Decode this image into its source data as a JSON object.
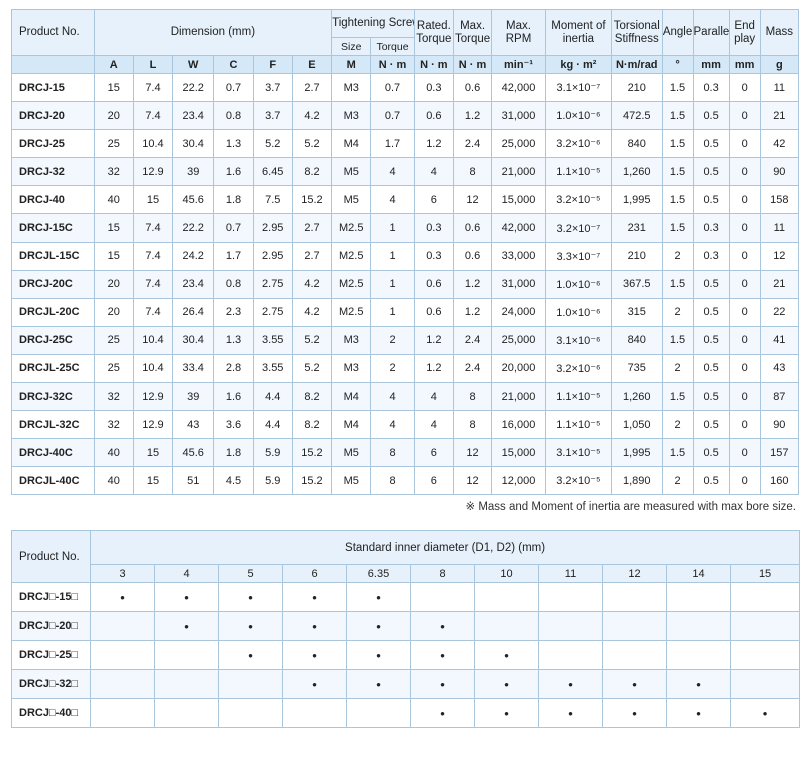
{
  "spec_table": {
    "headers": {
      "product_no": "Product No.",
      "dimension": "Dimension (mm)",
      "tightening_screw": "Tightening Screw",
      "size": "Size",
      "torque": "Torque",
      "rated_torque": "Rated. Torque",
      "max_torque": "Max. Torque",
      "max_rpm": "Max. RPM",
      "moment_of_inertia": "Moment of inertia",
      "torsional_stiffness": "Torsional Stiffness",
      "angle": "Angle",
      "parallel": "Parallel",
      "end_play": "End play",
      "mass": "Mass"
    },
    "letters": [
      "A",
      "L",
      "W",
      "C",
      "F",
      "E"
    ],
    "units": [
      "M",
      "N · m",
      "N · m",
      "N · m",
      "min⁻¹",
      "kg · m²",
      "N·m/rad",
      "°",
      "mm",
      "mm",
      "g"
    ],
    "rows": [
      [
        "DRCJ-15",
        "15",
        "7.4",
        "22.2",
        "0.7",
        "3.7",
        "2.7",
        "M3",
        "0.7",
        "0.3",
        "0.6",
        "42,000",
        "3.1×10⁻⁷",
        "210",
        "1.5",
        "0.3",
        "0",
        "11"
      ],
      [
        "DRCJ-20",
        "20",
        "7.4",
        "23.4",
        "0.8",
        "3.7",
        "4.2",
        "M3",
        "0.7",
        "0.6",
        "1.2",
        "31,000",
        "1.0×10⁻⁶",
        "472.5",
        "1.5",
        "0.5",
        "0",
        "21"
      ],
      [
        "DRCJ-25",
        "25",
        "10.4",
        "30.4",
        "1.3",
        "5.2",
        "5.2",
        "M4",
        "1.7",
        "1.2",
        "2.4",
        "25,000",
        "3.2×10⁻⁶",
        "840",
        "1.5",
        "0.5",
        "0",
        "42"
      ],
      [
        "DRCJ-32",
        "32",
        "12.9",
        "39",
        "1.6",
        "6.45",
        "8.2",
        "M5",
        "4",
        "4",
        "8",
        "21,000",
        "1.1×10⁻⁵",
        "1,260",
        "1.5",
        "0.5",
        "0",
        "90"
      ],
      [
        "DRCJ-40",
        "40",
        "15",
        "45.6",
        "1.8",
        "7.5",
        "15.2",
        "M5",
        "4",
        "6",
        "12",
        "15,000",
        "3.2×10⁻⁵",
        "1,995",
        "1.5",
        "0.5",
        "0",
        "158"
      ],
      [
        "DRCJ-15C",
        "15",
        "7.4",
        "22.2",
        "0.7",
        "2.95",
        "2.7",
        "M2.5",
        "1",
        "0.3",
        "0.6",
        "42,000",
        "3.2×10⁻⁷",
        "231",
        "1.5",
        "0.3",
        "0",
        "11"
      ],
      [
        "DRCJL-15C",
        "15",
        "7.4",
        "24.2",
        "1.7",
        "2.95",
        "2.7",
        "M2.5",
        "1",
        "0.3",
        "0.6",
        "33,000",
        "3.3×10⁻⁷",
        "210",
        "2",
        "0.3",
        "0",
        "12"
      ],
      [
        "DRCJ-20C",
        "20",
        "7.4",
        "23.4",
        "0.8",
        "2.75",
        "4.2",
        "M2.5",
        "1",
        "0.6",
        "1.2",
        "31,000",
        "1.0×10⁻⁶",
        "367.5",
        "1.5",
        "0.5",
        "0",
        "21"
      ],
      [
        "DRCJL-20C",
        "20",
        "7.4",
        "26.4",
        "2.3",
        "2.75",
        "4.2",
        "M2.5",
        "1",
        "0.6",
        "1.2",
        "24,000",
        "1.0×10⁻⁶",
        "315",
        "2",
        "0.5",
        "0",
        "22"
      ],
      [
        "DRCJ-25C",
        "25",
        "10.4",
        "30.4",
        "1.3",
        "3.55",
        "5.2",
        "M3",
        "2",
        "1.2",
        "2.4",
        "25,000",
        "3.1×10⁻⁶",
        "840",
        "1.5",
        "0.5",
        "0",
        "41"
      ],
      [
        "DRCJL-25C",
        "25",
        "10.4",
        "33.4",
        "2.8",
        "3.55",
        "5.2",
        "M3",
        "2",
        "1.2",
        "2.4",
        "20,000",
        "3.2×10⁻⁶",
        "735",
        "2",
        "0.5",
        "0",
        "43"
      ],
      [
        "DRCJ-32C",
        "32",
        "12.9",
        "39",
        "1.6",
        "4.4",
        "8.2",
        "M4",
        "4",
        "4",
        "8",
        "21,000",
        "1.1×10⁻⁵",
        "1,260",
        "1.5",
        "0.5",
        "0",
        "87"
      ],
      [
        "DRCJL-32C",
        "32",
        "12.9",
        "43",
        "3.6",
        "4.4",
        "8.2",
        "M4",
        "4",
        "4",
        "8",
        "16,000",
        "1.1×10⁻⁵",
        "1,050",
        "2",
        "0.5",
        "0",
        "90"
      ],
      [
        "DRCJ-40C",
        "40",
        "15",
        "45.6",
        "1.8",
        "5.9",
        "15.2",
        "M5",
        "8",
        "6",
        "12",
        "15,000",
        "3.1×10⁻⁵",
        "1,995",
        "1.5",
        "0.5",
        "0",
        "157"
      ],
      [
        "DRCJL-40C",
        "40",
        "15",
        "51",
        "4.5",
        "5.9",
        "15.2",
        "M5",
        "8",
        "6",
        "12",
        "12,000",
        "3.2×10⁻⁵",
        "1,890",
        "2",
        "0.5",
        "0",
        "160"
      ]
    ]
  },
  "note": "※ Mass and Moment of inertia are measured with max bore size.",
  "diameter_table": {
    "product_header": "Product No.",
    "title": "Standard inner diameter (D1, D2) (mm)",
    "diameters": [
      "3",
      "4",
      "5",
      "6",
      "6.35",
      "8",
      "10",
      "11",
      "12",
      "14",
      "15"
    ],
    "dot_symbol": "•",
    "rows": [
      {
        "product": "DRCJ□-15□",
        "available": [
          true,
          true,
          true,
          true,
          true,
          false,
          false,
          false,
          false,
          false,
          false
        ]
      },
      {
        "product": "DRCJ□-20□",
        "available": [
          false,
          true,
          true,
          true,
          true,
          true,
          false,
          false,
          false,
          false,
          false
        ]
      },
      {
        "product": "DRCJ□-25□",
        "available": [
          false,
          false,
          true,
          true,
          true,
          true,
          true,
          false,
          false,
          false,
          false
        ]
      },
      {
        "product": "DRCJ□-32□",
        "available": [
          false,
          false,
          false,
          true,
          true,
          true,
          true,
          true,
          true,
          true,
          false
        ]
      },
      {
        "product": "DRCJ□-40□",
        "available": [
          false,
          false,
          false,
          false,
          false,
          true,
          true,
          true,
          true,
          true,
          true
        ]
      }
    ]
  },
  "colors": {
    "header_bg": "#e6f1fb",
    "unit_row_bg": "#d5e8f7",
    "alt_row_bg": "#f2f8fd",
    "border": "#a9c6dc"
  }
}
